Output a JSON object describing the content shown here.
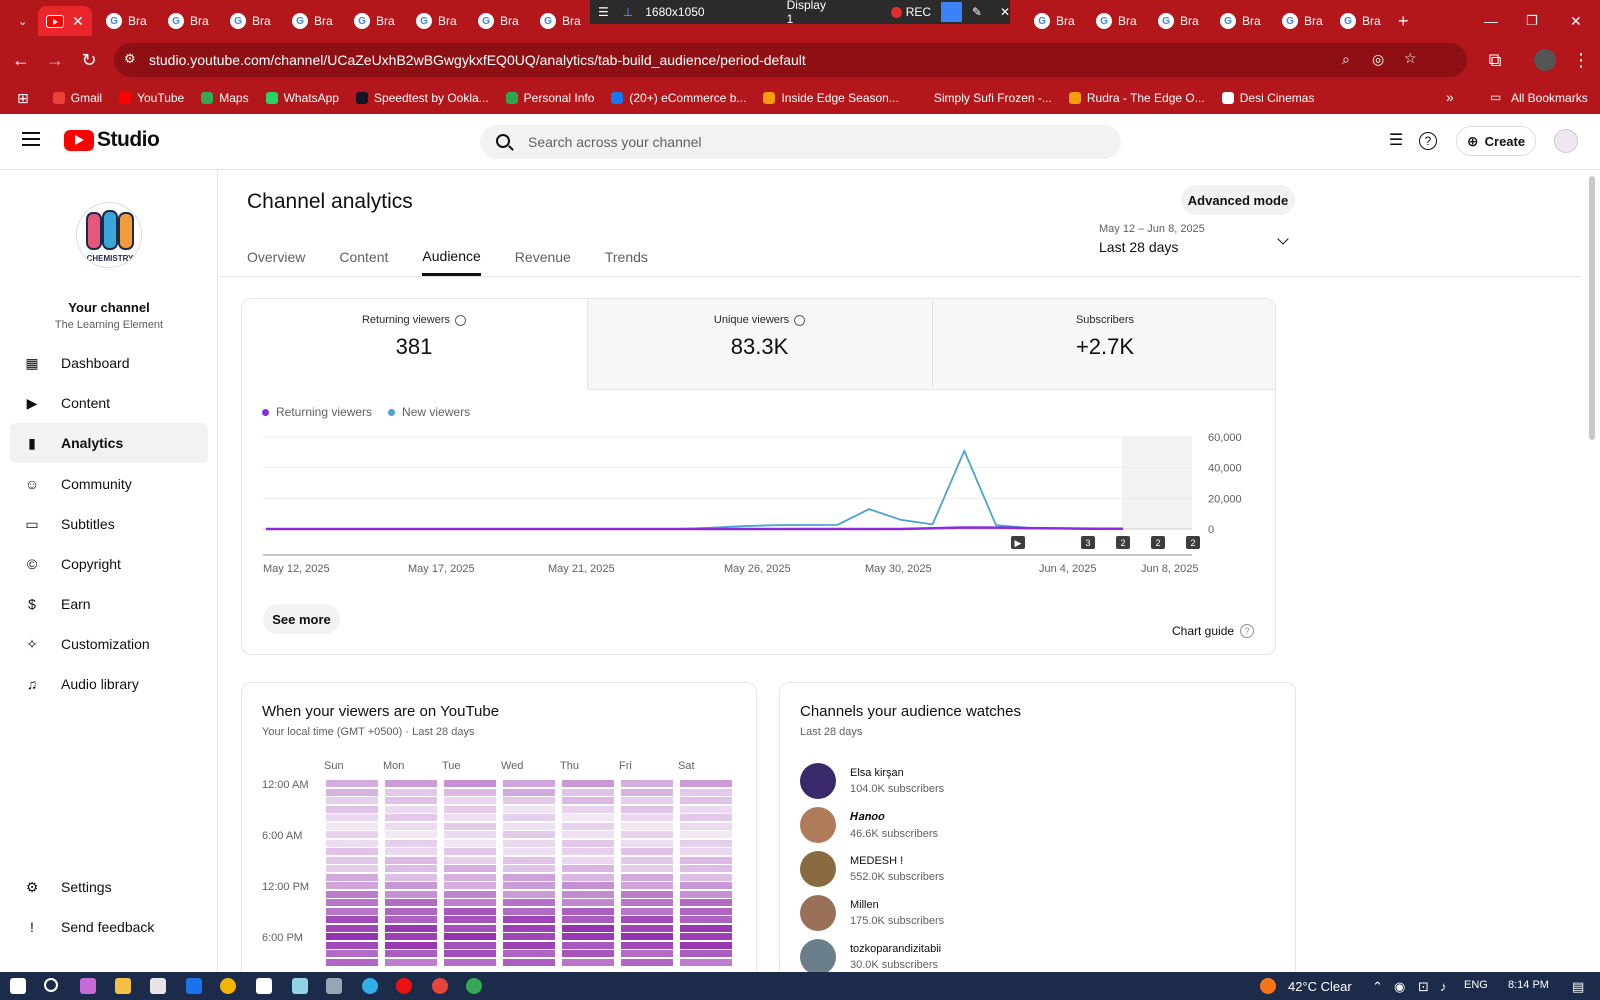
{
  "browser": {
    "active_tab_icon": "youtube-icon",
    "other_tab_label": "Bra",
    "recorder": {
      "resolution": "1680x1050",
      "display": "Display 1",
      "rec": "REC"
    },
    "url": "studio.youtube.com/channel/UCaZeUxhB2wBGwgykxfEQ0UQ/analytics/tab-build_audience/period-default",
    "bookmarks": [
      {
        "label": "Gmail",
        "color": "#ea4335"
      },
      {
        "label": "YouTube",
        "color": "#ff0000"
      },
      {
        "label": "Maps",
        "color": "#34a853"
      },
      {
        "label": "WhatsApp",
        "color": "#25d366"
      },
      {
        "label": "Speedtest by Ookla...",
        "color": "#141526"
      },
      {
        "label": "Personal Info",
        "color": "#2da44e"
      },
      {
        "label": "(20+) eCommerce b...",
        "color": "#1877f2"
      },
      {
        "label": "Inside Edge Season...",
        "color": "#f59e0b"
      },
      {
        "label": "Simply Sufi Frozen -...",
        "color": "#b3161b"
      },
      {
        "label": "Rudra - The Edge O...",
        "color": "#f59e0b"
      },
      {
        "label": "Desi Cinemas",
        "color": "#ffffff"
      }
    ],
    "all_bookmarks": "All Bookmarks"
  },
  "header": {
    "logo_text": "Studio",
    "search_placeholder": "Search across your channel",
    "create_label": "Create"
  },
  "sidebar": {
    "channel_title": "Your channel",
    "channel_name": "The Learning Element",
    "logo_text": "CHEMISTRY",
    "items": [
      {
        "label": "Dashboard",
        "icon": "dashboard-icon"
      },
      {
        "label": "Content",
        "icon": "content-icon"
      },
      {
        "label": "Analytics",
        "icon": "analytics-icon"
      },
      {
        "label": "Community",
        "icon": "community-icon"
      },
      {
        "label": "Subtitles",
        "icon": "subtitles-icon"
      },
      {
        "label": "Copyright",
        "icon": "copyright-icon"
      },
      {
        "label": "Earn",
        "icon": "earn-icon"
      },
      {
        "label": "Customization",
        "icon": "customization-icon"
      },
      {
        "label": "Audio library",
        "icon": "audio-library-icon"
      }
    ],
    "settings": "Settings",
    "feedback": "Send feedback"
  },
  "main": {
    "title": "Channel analytics",
    "advanced_mode": "Advanced mode",
    "tabs": [
      "Overview",
      "Content",
      "Audience",
      "Revenue",
      "Trends"
    ],
    "active_tab": "Audience",
    "period_range": "May 12 – Jun 8, 2025",
    "period_label": "Last 28 days",
    "metrics": [
      {
        "label": "Returning viewers",
        "value": "381"
      },
      {
        "label": "Unique viewers",
        "value": "83.3K"
      },
      {
        "label": "Subscribers",
        "value": "+2.7K"
      }
    ],
    "see_more": "See more",
    "chart_guide": "Chart guide"
  },
  "chart_data": {
    "type": "line",
    "x_labels": [
      "May 12, 2025",
      "May 17, 2025",
      "May 21, 2025",
      "May 26, 2025",
      "May 30, 2025",
      "Jun 4, 2025",
      "Jun 8, 2025"
    ],
    "y_ticks": [
      "60,000",
      "40,000",
      "20,000",
      "0"
    ],
    "ylim": [
      0,
      60000
    ],
    "series": [
      {
        "name": "Returning viewers",
        "color": "#8a2be2",
        "values": [
          0,
          0,
          0,
          0,
          0,
          0,
          0,
          0,
          0,
          0,
          0,
          0,
          0,
          0,
          0,
          0,
          0,
          0,
          0,
          0,
          0,
          500,
          1000,
          900,
          600,
          400,
          200,
          100
        ]
      },
      {
        "name": "New viewers",
        "color": "#4aa3d0",
        "values": [
          0,
          0,
          0,
          0,
          0,
          0,
          0,
          0,
          0,
          0,
          0,
          0,
          0,
          0,
          800,
          1800,
          2500,
          2600,
          2700,
          13000,
          6000,
          3000,
          51000,
          2500,
          800,
          300,
          100,
          50
        ]
      }
    ],
    "markers": [
      "▶",
      "3",
      "2",
      "2",
      "2"
    ]
  },
  "viewers_card": {
    "title": "When your viewers are on YouTube",
    "subtitle": "Your local time (GMT +0500) · Last 28 days",
    "days": [
      "Sun",
      "Mon",
      "Tue",
      "Wed",
      "Thu",
      "Fri",
      "Sat"
    ],
    "times": [
      "12:00 AM",
      "6:00 AM",
      "12:00 PM",
      "6:00 PM"
    ]
  },
  "channels_card": {
    "title": "Channels your audience watches",
    "subtitle": "Last 28 days",
    "channels": [
      {
        "name": "Elsa kirşan",
        "subs": "104.0K subscribers",
        "color": "#3b2a6b"
      },
      {
        "name": "𝑯𝒂𝒏𝒐𝒐",
        "subs": "46.6K subscribers",
        "color": "#b07b5a"
      },
      {
        "name": "MEDESH !",
        "subs": "552.0K subscribers",
        "color": "#8a6a40"
      },
      {
        "name": "Millen",
        "subs": "175.0K subscribers",
        "color": "#9a7058"
      },
      {
        "name": "tozkoparandizitabii",
        "subs": "30.0K subscribers",
        "color": "#6b7f8a"
      }
    ]
  },
  "taskbar": {
    "weather": "42°C Clear",
    "lang": "ENG",
    "time": "8:14 PM"
  }
}
